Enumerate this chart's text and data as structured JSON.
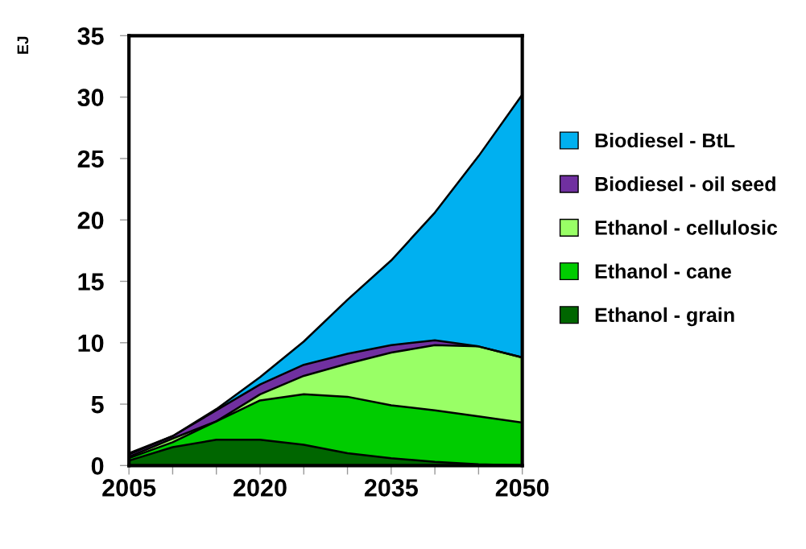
{
  "chart_data": {
    "type": "area",
    "stacked": true,
    "ylabel": "EJ",
    "x": [
      2005,
      2010,
      2015,
      2020,
      2025,
      2030,
      2035,
      2040,
      2045,
      2050
    ],
    "xlim": [
      2005,
      2050
    ],
    "xticks": [
      2005,
      {
        "value": 2010,
        "label": null
      },
      {
        "value": 2015,
        "label": null
      },
      2020,
      {
        "value": 2025,
        "label": null
      },
      {
        "value": 2030,
        "label": null
      },
      2035,
      {
        "value": 2040,
        "label": null
      },
      {
        "value": 2045,
        "label": null
      },
      2050
    ],
    "ylim": [
      0,
      35
    ],
    "yticks": [
      0,
      5,
      10,
      15,
      20,
      25,
      30,
      35
    ],
    "grid": false,
    "legend": "right",
    "series": [
      {
        "name": "Ethanol - grain",
        "color": "#006600",
        "values": [
          0.4,
          1.5,
          2.1,
          2.1,
          1.7,
          1.0,
          0.6,
          0.3,
          0.1,
          0
        ]
      },
      {
        "name": "Ethanol - cane",
        "color": "#00cc00",
        "values": [
          0.2,
          0.4,
          1.5,
          3.2,
          4.1,
          4.6,
          4.3,
          4.2,
          3.9,
          3.5
        ]
      },
      {
        "name": "Ethanol - cellulosic",
        "color": "#99ff66",
        "values": [
          0.1,
          0.3,
          0.0,
          0.5,
          1.5,
          2.7,
          4.3,
          5.3,
          5.7,
          5.3
        ]
      },
      {
        "name": "Biodiesel - oil seed",
        "color": "#7030a0",
        "values": [
          0.2,
          0.2,
          0.9,
          0.8,
          0.9,
          0.8,
          0.6,
          0.4,
          0,
          0
        ]
      },
      {
        "name": "Biodiesel - BtL",
        "color": "#00b0f0",
        "values": [
          0.1,
          0,
          0.1,
          0.6,
          1.9,
          4.4,
          6.9,
          10.4,
          15.5,
          21.4
        ]
      }
    ]
  }
}
